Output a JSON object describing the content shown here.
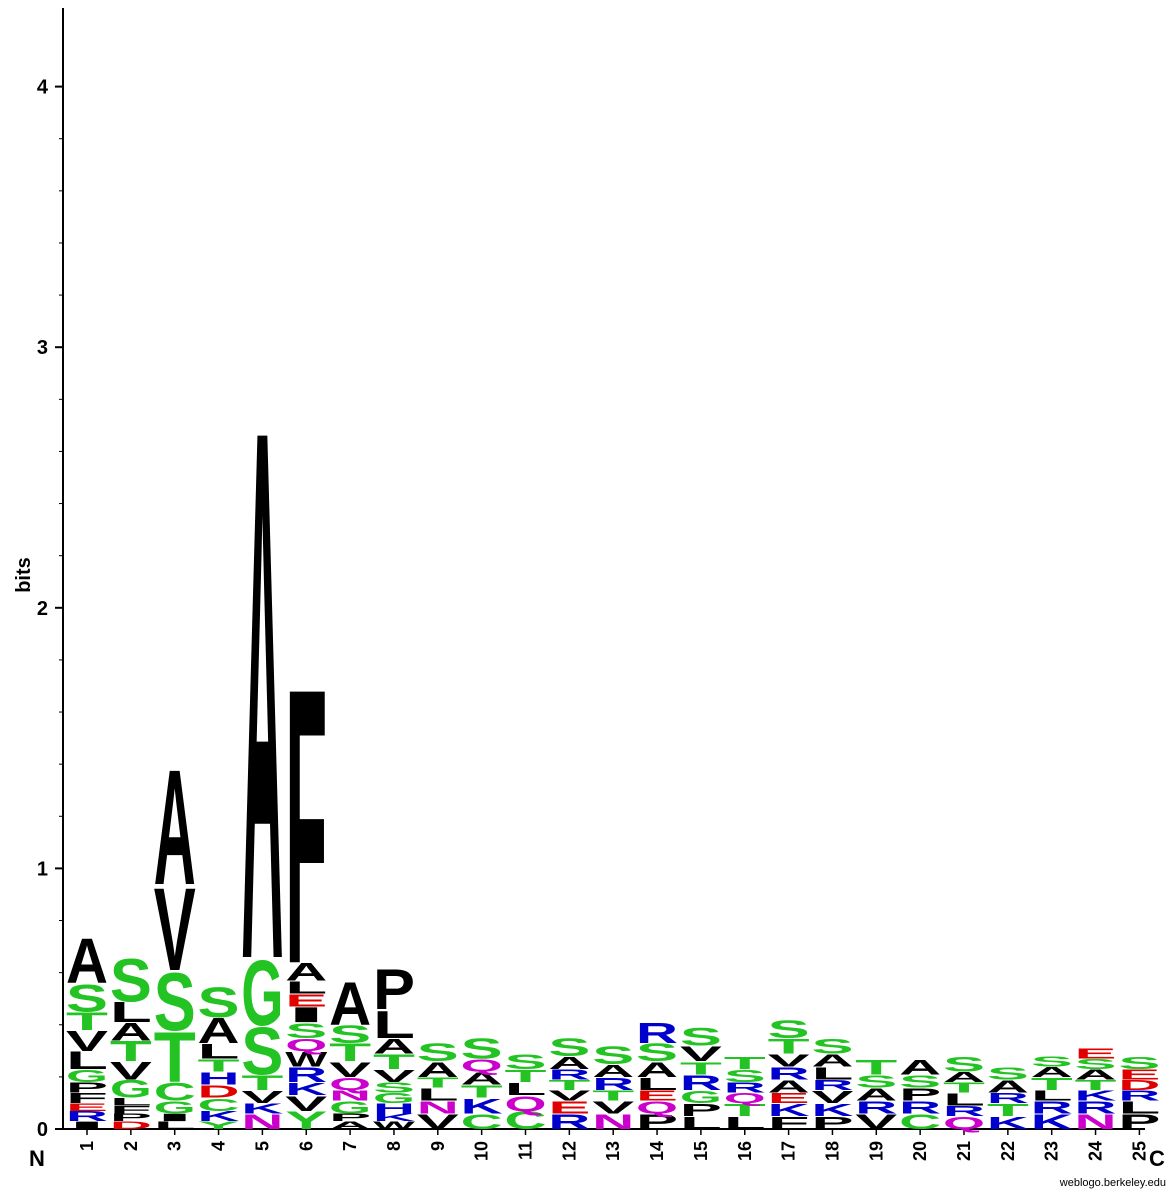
{
  "chart_data": {
    "type": "sequence-logo",
    "ylabel": "bits",
    "ylim": [
      0,
      4.3
    ],
    "yticks": [
      "0",
      "1",
      "2",
      "3",
      "4"
    ],
    "n_label": "N",
    "c_label": "C",
    "credit": "weblogo.berkeley.edu",
    "colors": {
      "A": "#000000",
      "V": "#000000",
      "L": "#000000",
      "I": "#000000",
      "P": "#000000",
      "F": "#000000",
      "M": "#000000",
      "W": "#000000",
      "S": "#22c322",
      "T": "#22c322",
      "G": "#22c322",
      "Y": "#22c322",
      "C": "#22c322",
      "Q": "#cc00cc",
      "N": "#cc00cc",
      "R": "#0000cc",
      "K": "#0000cc",
      "H": "#0000cc",
      "D": "#e00000",
      "E": "#e00000"
    },
    "positions": [
      {
        "pos": "1",
        "stack": [
          [
            "I",
            0.03
          ],
          [
            "R",
            0.04
          ],
          [
            "E",
            0.03
          ],
          [
            "F",
            0.04
          ],
          [
            "P",
            0.04
          ],
          [
            "G",
            0.05
          ],
          [
            "L",
            0.07
          ],
          [
            "V",
            0.08
          ],
          [
            "T",
            0.07
          ],
          [
            "S",
            0.11
          ],
          [
            "A",
            0.18
          ]
        ]
      },
      {
        "pos": "2",
        "stack": [
          [
            "D",
            0.03
          ],
          [
            "P",
            0.03
          ],
          [
            "F",
            0.03
          ],
          [
            "L",
            0.03
          ],
          [
            "G",
            0.07
          ],
          [
            "V",
            0.07
          ],
          [
            "T",
            0.08
          ],
          [
            "A",
            0.07
          ],
          [
            "L",
            0.08
          ],
          [
            "S",
            0.17
          ]
        ]
      },
      {
        "pos": "3",
        "stack": [
          [
            "L",
            0.03
          ],
          [
            "I",
            0.03
          ],
          [
            "G",
            0.05
          ],
          [
            "C",
            0.07
          ],
          [
            "T",
            0.2
          ],
          [
            "S",
            0.23
          ],
          [
            "V",
            0.33
          ],
          [
            "A",
            0.46
          ]
        ]
      },
      {
        "pos": "4",
        "stack": [
          [
            "Y",
            0.03
          ],
          [
            "K",
            0.04
          ],
          [
            "C",
            0.05
          ],
          [
            "D",
            0.05
          ],
          [
            "H",
            0.05
          ],
          [
            "T",
            0.05
          ],
          [
            "L",
            0.06
          ],
          [
            "A",
            0.1
          ],
          [
            "S",
            0.12
          ]
        ]
      },
      {
        "pos": "5",
        "stack": [
          [
            "N",
            0.06
          ],
          [
            "K",
            0.04
          ],
          [
            "V",
            0.05
          ],
          [
            "T",
            0.06
          ],
          [
            "S",
            0.19
          ],
          [
            "G",
            0.26
          ],
          [
            "A",
            2.12
          ]
        ]
      },
      {
        "pos": "6",
        "stack": [
          [
            "Y",
            0.07
          ],
          [
            "V",
            0.06
          ],
          [
            "K",
            0.05
          ],
          [
            "R",
            0.06
          ],
          [
            "W",
            0.06
          ],
          [
            "Q",
            0.05
          ],
          [
            "S",
            0.06
          ],
          [
            "I",
            0.06
          ],
          [
            "E",
            0.05
          ],
          [
            "L",
            0.05
          ],
          [
            "A",
            0.07
          ],
          [
            "F",
            1.1
          ]
        ]
      },
      {
        "pos": "7",
        "stack": [
          [
            "A",
            0.03
          ],
          [
            "P",
            0.03
          ],
          [
            "G",
            0.05
          ],
          [
            "N",
            0.04
          ],
          [
            "Q",
            0.05
          ],
          [
            "V",
            0.06
          ],
          [
            "T",
            0.07
          ],
          [
            "S",
            0.07
          ],
          [
            "A",
            0.17
          ]
        ]
      },
      {
        "pos": "8",
        "stack": [
          [
            "W",
            0.03
          ],
          [
            "K",
            0.03
          ],
          [
            "H",
            0.04
          ],
          [
            "G",
            0.04
          ],
          [
            "S",
            0.04
          ],
          [
            "V",
            0.05
          ],
          [
            "T",
            0.06
          ],
          [
            "A",
            0.06
          ],
          [
            "L",
            0.11
          ],
          [
            "P",
            0.16
          ]
        ]
      },
      {
        "pos": "9",
        "stack": [
          [
            "V",
            0.06
          ],
          [
            "N",
            0.05
          ],
          [
            "L",
            0.05
          ],
          [
            "T",
            0.04
          ],
          [
            "A",
            0.06
          ],
          [
            "S",
            0.07
          ]
        ]
      },
      {
        "pos": "10",
        "stack": [
          [
            "C",
            0.06
          ],
          [
            "K",
            0.06
          ],
          [
            "T",
            0.05
          ],
          [
            "A",
            0.05
          ],
          [
            "Q",
            0.05
          ],
          [
            "S",
            0.08
          ]
        ]
      },
      {
        "pos": "11",
        "stack": [
          [
            "C",
            0.07
          ],
          [
            "Q",
            0.06
          ],
          [
            "L",
            0.05
          ],
          [
            "T",
            0.05
          ],
          [
            "S",
            0.06
          ]
        ]
      },
      {
        "pos": "12",
        "stack": [
          [
            "R",
            0.06
          ],
          [
            "E",
            0.05
          ],
          [
            "V",
            0.04
          ],
          [
            "T",
            0.04
          ],
          [
            "R",
            0.04
          ],
          [
            "A",
            0.05
          ],
          [
            "S",
            0.07
          ]
        ]
      },
      {
        "pos": "13",
        "stack": [
          [
            "N",
            0.06
          ],
          [
            "V",
            0.05
          ],
          [
            "T",
            0.04
          ],
          [
            "R",
            0.05
          ],
          [
            "A",
            0.05
          ],
          [
            "S",
            0.07
          ]
        ]
      },
      {
        "pos": "14",
        "stack": [
          [
            "P",
            0.06
          ],
          [
            "Q",
            0.05
          ],
          [
            "E",
            0.04
          ],
          [
            "L",
            0.05
          ],
          [
            "A",
            0.06
          ],
          [
            "S",
            0.07
          ],
          [
            "R",
            0.08
          ]
        ]
      },
      {
        "pos": "15",
        "stack": [
          [
            "L",
            0.05
          ],
          [
            "P",
            0.05
          ],
          [
            "G",
            0.05
          ],
          [
            "R",
            0.06
          ],
          [
            "T",
            0.05
          ],
          [
            "V",
            0.06
          ],
          [
            "S",
            0.07
          ]
        ]
      },
      {
        "pos": "16",
        "stack": [
          [
            "L",
            0.05
          ],
          [
            "T",
            0.05
          ],
          [
            "Q",
            0.04
          ],
          [
            "R",
            0.04
          ],
          [
            "S",
            0.05
          ],
          [
            "T",
            0.05
          ]
        ]
      },
      {
        "pos": "17",
        "stack": [
          [
            "F",
            0.05
          ],
          [
            "K",
            0.05
          ],
          [
            "E",
            0.04
          ],
          [
            "A",
            0.05
          ],
          [
            "R",
            0.05
          ],
          [
            "V",
            0.05
          ],
          [
            "T",
            0.06
          ],
          [
            "S",
            0.07
          ]
        ]
      },
      {
        "pos": "18",
        "stack": [
          [
            "P",
            0.05
          ],
          [
            "K",
            0.05
          ],
          [
            "V",
            0.05
          ],
          [
            "R",
            0.04
          ],
          [
            "L",
            0.05
          ],
          [
            "A",
            0.05
          ],
          [
            "S",
            0.06
          ]
        ]
      },
      {
        "pos": "19",
        "stack": [
          [
            "V",
            0.06
          ],
          [
            "R",
            0.05
          ],
          [
            "A",
            0.05
          ],
          [
            "S",
            0.05
          ],
          [
            "T",
            0.06
          ]
        ]
      },
      {
        "pos": "20",
        "stack": [
          [
            "C",
            0.06
          ],
          [
            "R",
            0.05
          ],
          [
            "P",
            0.05
          ],
          [
            "S",
            0.05
          ],
          [
            "A",
            0.06
          ]
        ]
      },
      {
        "pos": "21",
        "stack": [
          [
            "Q",
            0.05
          ],
          [
            "R",
            0.04
          ],
          [
            "L",
            0.05
          ],
          [
            "T",
            0.04
          ],
          [
            "A",
            0.04
          ],
          [
            "S",
            0.06
          ]
        ]
      },
      {
        "pos": "22",
        "stack": [
          [
            "K",
            0.05
          ],
          [
            "T",
            0.05
          ],
          [
            "R",
            0.04
          ],
          [
            "A",
            0.05
          ],
          [
            "S",
            0.05
          ]
        ]
      },
      {
        "pos": "23",
        "stack": [
          [
            "K",
            0.06
          ],
          [
            "R",
            0.05
          ],
          [
            "L",
            0.04
          ],
          [
            "T",
            0.05
          ],
          [
            "A",
            0.04
          ],
          [
            "S",
            0.04
          ]
        ]
      },
      {
        "pos": "24",
        "stack": [
          [
            "N",
            0.06
          ],
          [
            "R",
            0.05
          ],
          [
            "K",
            0.04
          ],
          [
            "T",
            0.04
          ],
          [
            "A",
            0.04
          ],
          [
            "S",
            0.04
          ],
          [
            "E",
            0.04
          ]
        ]
      },
      {
        "pos": "25",
        "stack": [
          [
            "P",
            0.06
          ],
          [
            "L",
            0.05
          ],
          [
            "R",
            0.04
          ],
          [
            "D",
            0.04
          ],
          [
            "E",
            0.04
          ],
          [
            "S",
            0.05
          ]
        ]
      }
    ]
  }
}
